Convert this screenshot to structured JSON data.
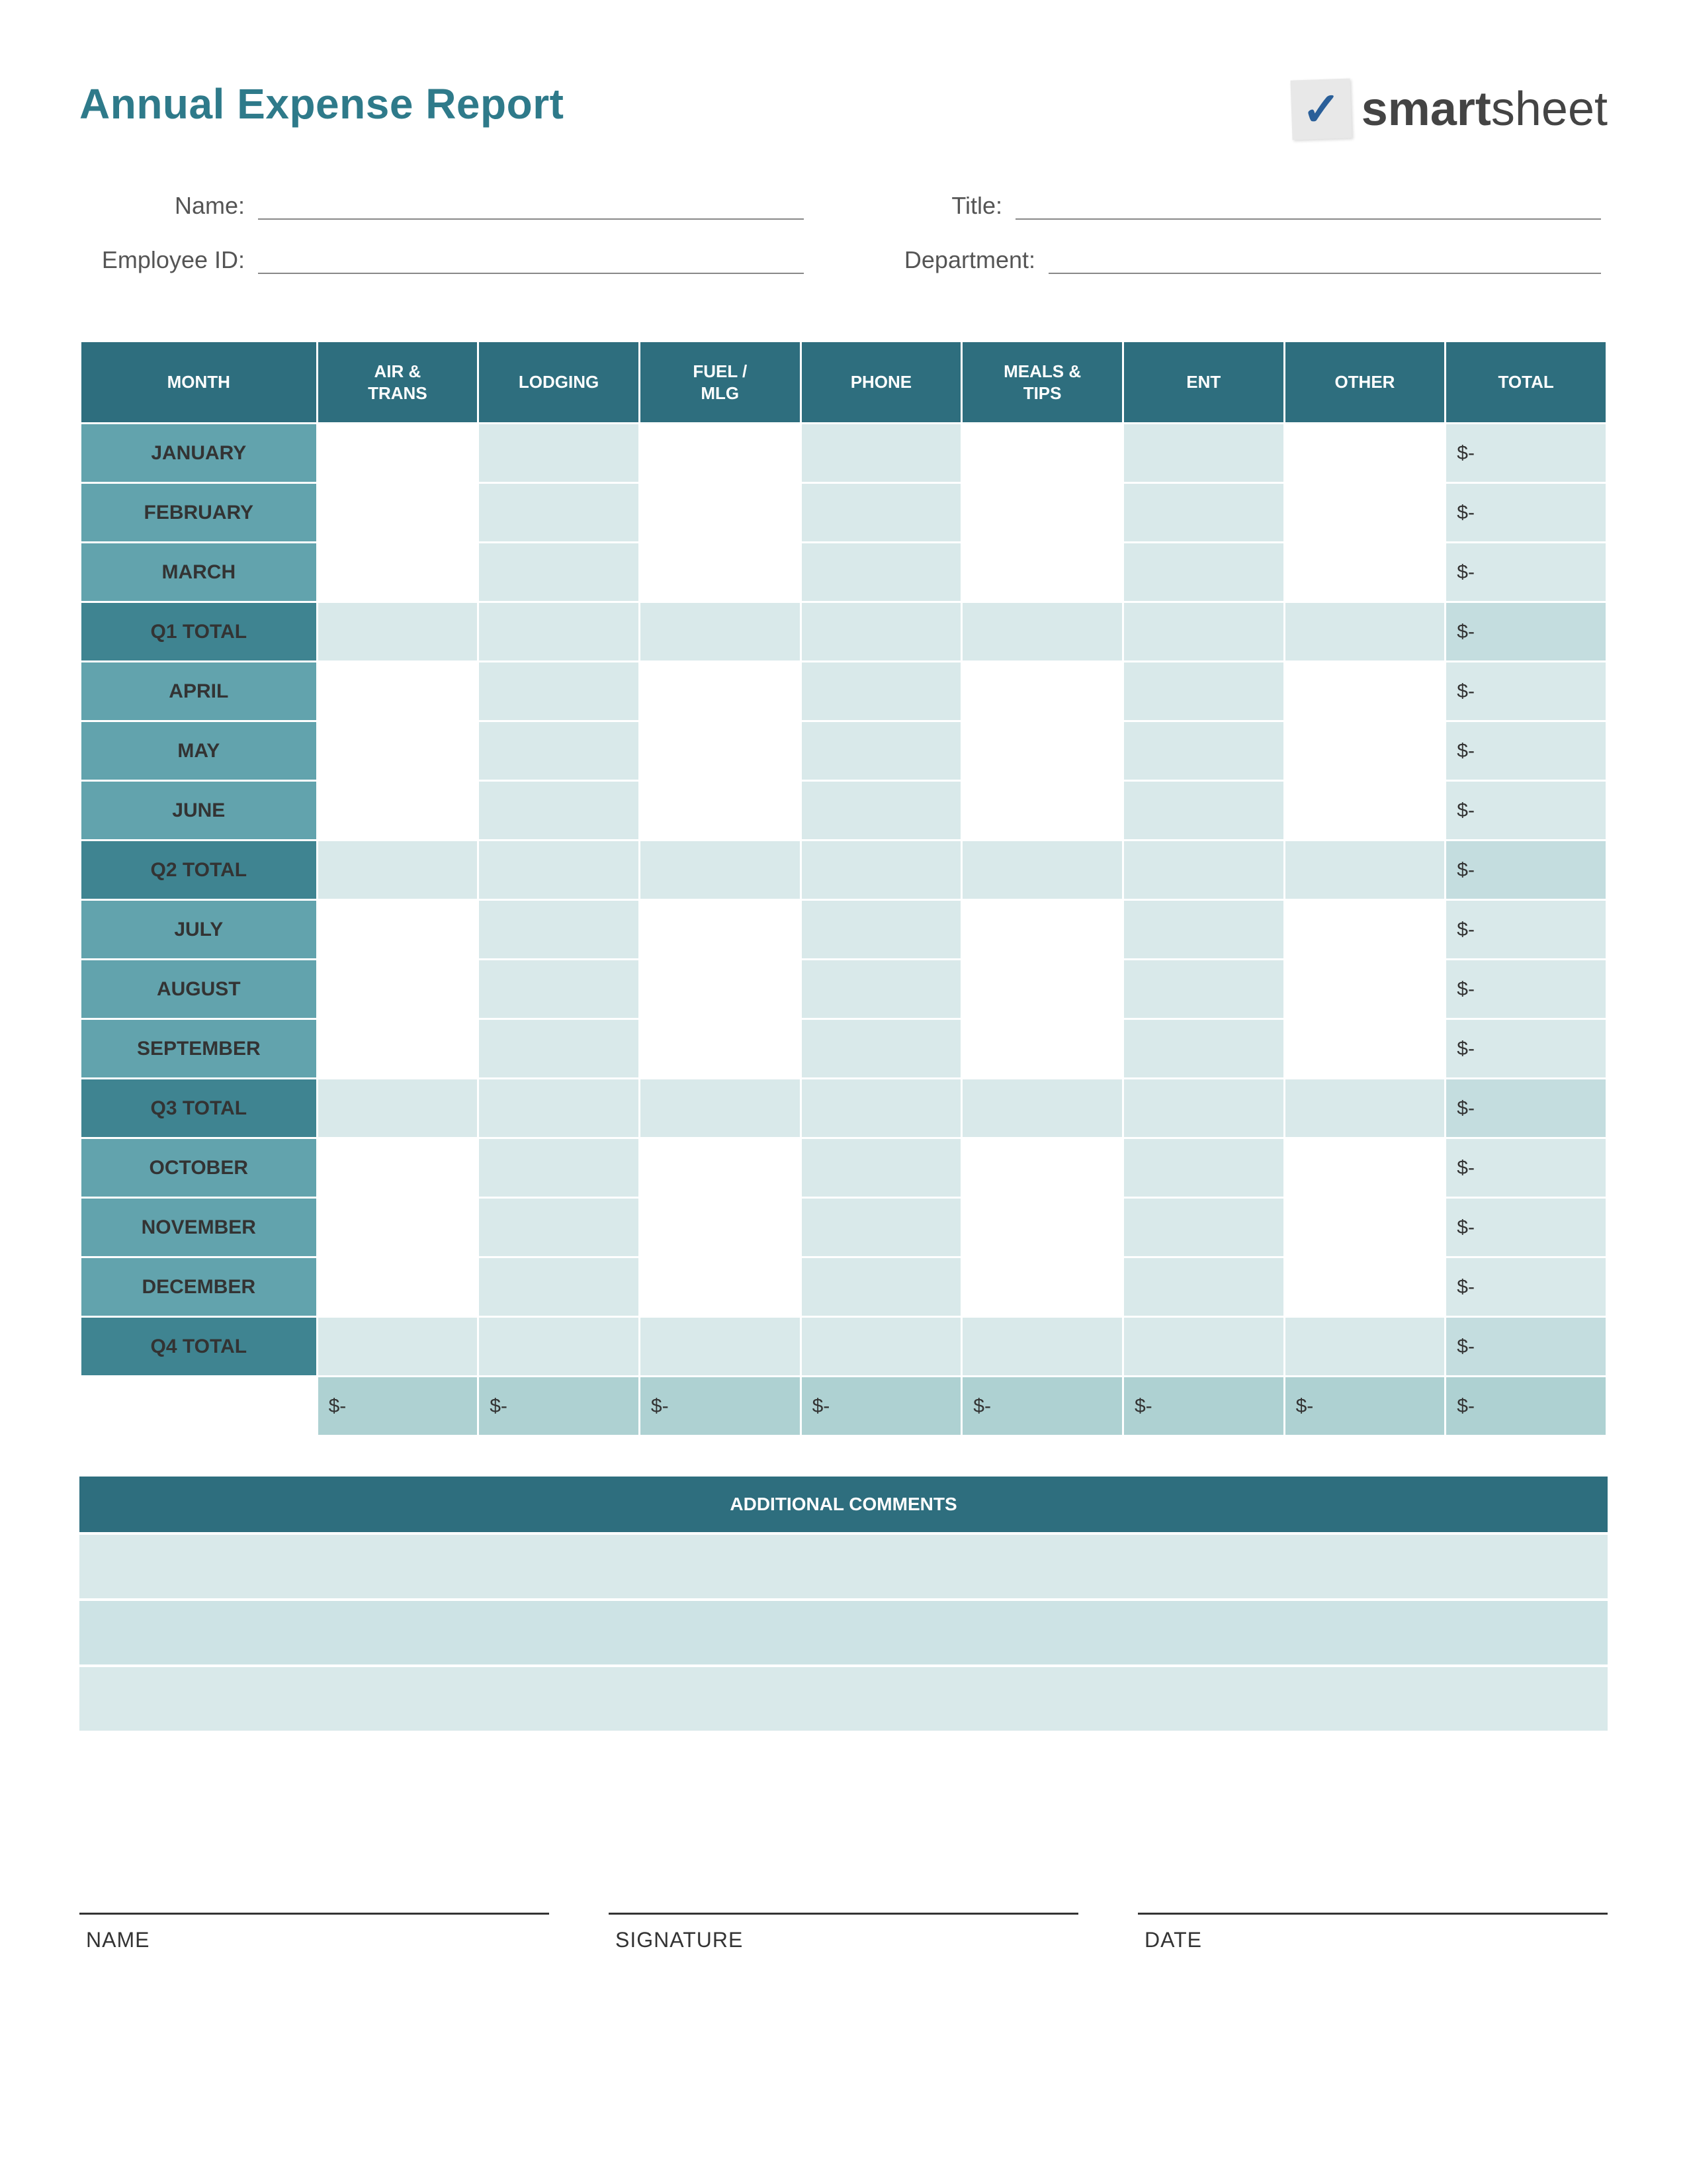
{
  "page": {
    "title": "Annual Expense Report",
    "brand": {
      "name_bold": "smart",
      "name_light": "sheet"
    }
  },
  "info": {
    "name_label": "Name:",
    "title_label": "Title:",
    "emp_id_label": "Employee ID:",
    "dept_label": "Department:"
  },
  "table": {
    "headers": [
      "MONTH",
      "AIR & TRANS",
      "LODGING",
      "FUEL / MLG",
      "PHONE",
      "MEALS & TIPS",
      "ENT",
      "OTHER",
      "TOTAL"
    ],
    "rows": [
      {
        "label": "JANUARY",
        "type": "month",
        "total": "$-"
      },
      {
        "label": "FEBRUARY",
        "type": "month",
        "total": "$-"
      },
      {
        "label": "MARCH",
        "type": "month",
        "total": "$-"
      },
      {
        "label": "Q1 TOTAL",
        "type": "qtotal",
        "total": "$-"
      },
      {
        "label": "APRIL",
        "type": "month",
        "total": "$-"
      },
      {
        "label": "MAY",
        "type": "month",
        "total": "$-"
      },
      {
        "label": "JUNE",
        "type": "month",
        "total": "$-"
      },
      {
        "label": "Q2 TOTAL",
        "type": "qtotal",
        "total": "$-"
      },
      {
        "label": "JULY",
        "type": "month",
        "total": "$-"
      },
      {
        "label": "AUGUST",
        "type": "month",
        "total": "$-"
      },
      {
        "label": "SEPTEMBER",
        "type": "month",
        "total": "$-"
      },
      {
        "label": "Q3 TOTAL",
        "type": "qtotal",
        "total": "$-"
      },
      {
        "label": "OCTOBER",
        "type": "month",
        "total": "$-"
      },
      {
        "label": "NOVEMBER",
        "type": "month",
        "total": "$-"
      },
      {
        "label": "DECEMBER",
        "type": "month",
        "total": "$-"
      },
      {
        "label": "Q4 TOTAL",
        "type": "qtotal",
        "total": "$-"
      }
    ],
    "grand": {
      "cells": [
        "$-",
        "$-",
        "$-",
        "$-",
        "$-",
        "$-",
        "$-",
        "$-"
      ]
    }
  },
  "comments": {
    "header": "ADDITIONAL COMMENTS"
  },
  "sig": {
    "name": "NAME",
    "signature": "SIGNATURE",
    "date": "DATE"
  },
  "colors": {
    "title": "#2e7a8a",
    "header_bg": "#2e6e7e",
    "month_bg": "#62a3ad",
    "qtotal_bg": "#3f8491",
    "cell_light": "#d9e9ea",
    "cell_mid": "#c4dddf",
    "cell_dark": "#aed1d2",
    "white": "#ffffff",
    "text": "#333333"
  },
  "fonts": {
    "title_size": 64,
    "header_cell_size": 26,
    "body_cell_size": 30,
    "label_size": 36,
    "sig_label_size": 32
  }
}
